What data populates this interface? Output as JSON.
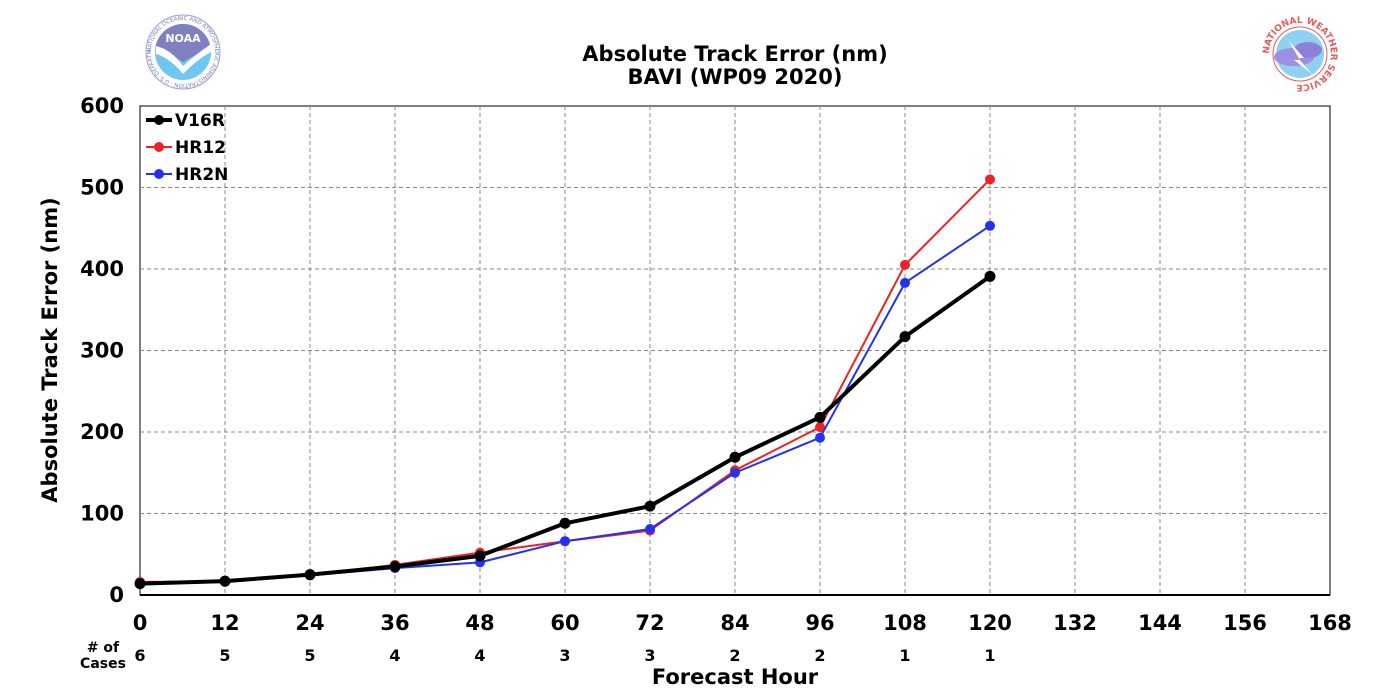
{
  "chart_data": {
    "type": "line",
    "title": "Absolute Track Error (nm)",
    "subtitle": "BAVI (WP09 2020)",
    "xlabel": "Forecast Hour",
    "ylabel": "Absolute Track Error (nm)",
    "xlim": [
      0,
      168
    ],
    "ylim": [
      0,
      600
    ],
    "xticks": [
      0,
      12,
      24,
      36,
      48,
      60,
      72,
      84,
      96,
      108,
      120,
      132,
      144,
      156,
      168
    ],
    "yticks": [
      0,
      100,
      200,
      300,
      400,
      500,
      600
    ],
    "grid": true,
    "legend_position": "top-left",
    "cases_label_line1": "# of",
    "cases_label_line2": "Cases",
    "cases": [
      {
        "x": 0,
        "n": "6"
      },
      {
        "x": 12,
        "n": "5"
      },
      {
        "x": 24,
        "n": "5"
      },
      {
        "x": 36,
        "n": "4"
      },
      {
        "x": 48,
        "n": "4"
      },
      {
        "x": 60,
        "n": "3"
      },
      {
        "x": 72,
        "n": "3"
      },
      {
        "x": 84,
        "n": "2"
      },
      {
        "x": 96,
        "n": "2"
      },
      {
        "x": 108,
        "n": "1"
      },
      {
        "x": 120,
        "n": "1"
      }
    ],
    "x": [
      0,
      12,
      24,
      36,
      48,
      60,
      72,
      84,
      96,
      108,
      120
    ],
    "series": [
      {
        "name": "HR12",
        "color": "#ee2222",
        "weight": "thin",
        "values": [
          16,
          17,
          25,
          37,
          52,
          66,
          79,
          153,
          206,
          405,
          510
        ]
      },
      {
        "name": "HR2N",
        "color": "#2233ee",
        "weight": "thin",
        "values": [
          14,
          16,
          24,
          33,
          40,
          66,
          81,
          150,
          193,
          383,
          453
        ]
      },
      {
        "name": "V16R",
        "color": "#000000",
        "weight": "thick",
        "values": [
          14,
          17,
          25,
          35,
          48,
          88,
          109,
          169,
          218,
          317,
          391
        ]
      }
    ],
    "legend_order": [
      "V16R",
      "HR12",
      "HR2N"
    ]
  },
  "logos": {
    "noaa_text": "NOAA",
    "noaa_ring_text": "NATIONAL OCEANIC AND ATMOSPHERIC ADMINISTRATION · U.S. DEPARTMENT OF COMMERCE",
    "nws_ring_text": "NATIONAL WEATHER SERVICE"
  }
}
